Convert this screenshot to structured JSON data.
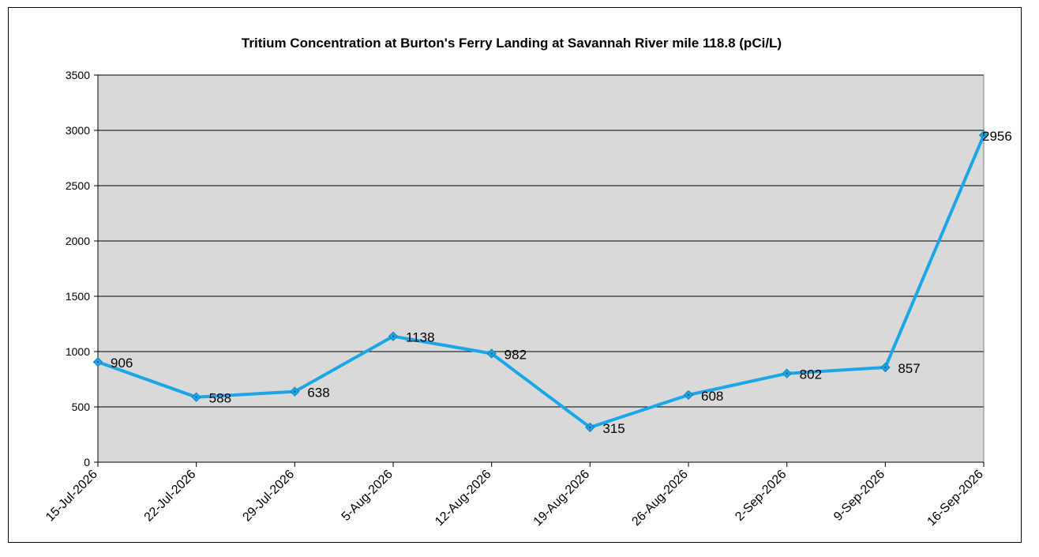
{
  "chart_data": {
    "type": "line",
    "title": "Tritium Concentration at Burton's Ferry Landing at Savannah River mile 118.8 (pCi/L)",
    "xlabel": "",
    "ylabel": "",
    "categories": [
      "15-Jul-2026",
      "22-Jul-2026",
      "29-Jul-2026",
      "5-Aug-2026",
      "12-Aug-2026",
      "19-Aug-2026",
      "26-Aug-2026",
      "2-Sep-2026",
      "9-Sep-2026",
      "16-Sep-2026"
    ],
    "series": [
      {
        "values": [
          906,
          588,
          638,
          1138,
          982,
          315,
          608,
          802,
          857,
          2956
        ]
      }
    ],
    "data_labels": [
      "906",
      "588",
      "638",
      "1138",
      "982",
      "315",
      "608",
      "802",
      "857",
      "2956"
    ],
    "yticks": [
      "0",
      "500",
      "1000",
      "1500",
      "2000",
      "2500",
      "3000",
      "3500"
    ],
    "ylim": [
      0,
      3500
    ],
    "grid": true,
    "legend": "none",
    "colors": {
      "line": "#1AA6E8",
      "marker": "#1AA6E8",
      "plot_background": "#D9D9D9",
      "gridline": "#000000"
    }
  }
}
